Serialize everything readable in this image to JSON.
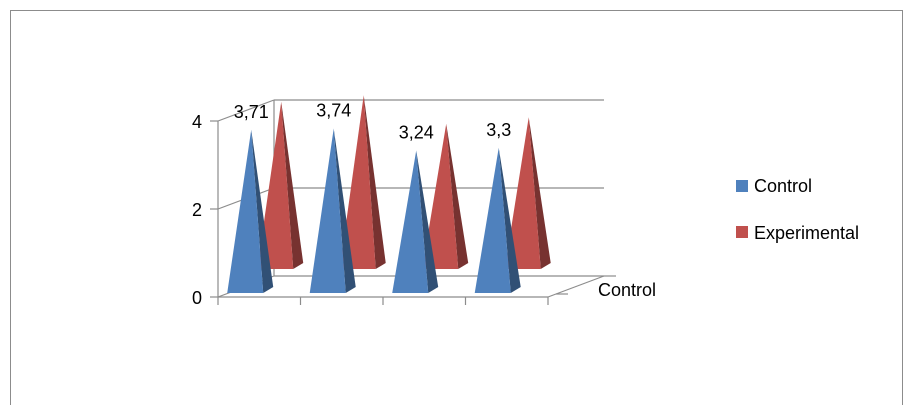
{
  "chart_data": {
    "type": "bar",
    "variant": "3d-pyramid",
    "title": "",
    "xlabel": "",
    "ylabel": "",
    "ylim": [
      0,
      4
    ],
    "yticks": [
      0,
      2,
      4
    ],
    "grid": true,
    "legend": "right",
    "categories": [
      "",
      "",
      "",
      ""
    ],
    "depth_label": "Control",
    "series": [
      {
        "name": "Control",
        "color": "#4f81bd",
        "values": [
          3.71,
          3.74,
          3.24,
          3.3
        ],
        "labels": [
          "3,71",
          "3,74",
          "3,24",
          "3,3"
        ]
      },
      {
        "name": "Experimental",
        "color": "#c0504d",
        "values": [
          3.8,
          3.95,
          3.3,
          3.45
        ]
      }
    ]
  }
}
